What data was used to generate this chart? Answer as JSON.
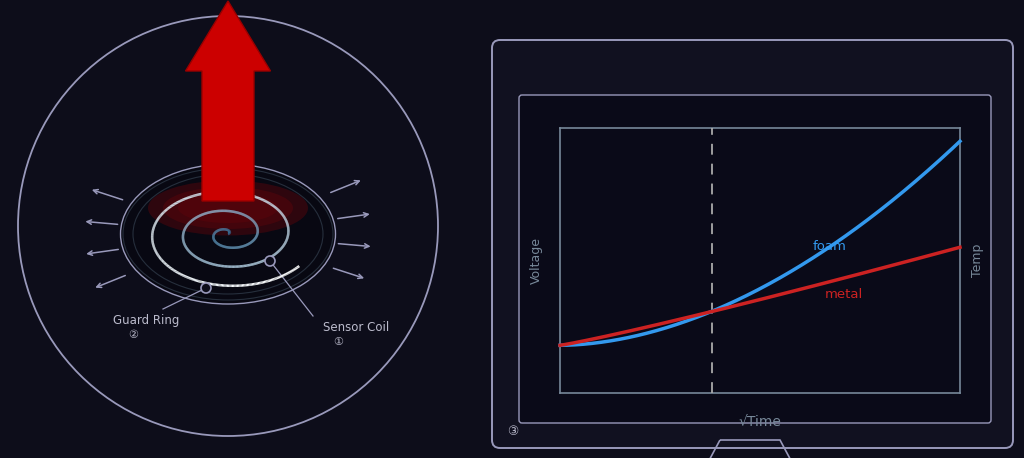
{
  "bg_color": "#0d0d1a",
  "outline_color": "#9999bb",
  "label_color": "#bbbbcc",
  "arrow_color": "#cc0000",
  "foam_color": "#3399ee",
  "metal_color": "#cc2222",
  "graph_axis_color": "#778899",
  "dashed_color": "#aaaaaa",
  "monitor_outline": "#9999bb",
  "ylabel_left": "Voltage",
  "ylabel_right": "Temp",
  "xlabel": "√Time",
  "label_foam": "foam",
  "label_metal": "metal",
  "label_sensor": "Sensor Coil",
  "label_guard": "Guard Ring",
  "num_sensor": "①",
  "num_guard": "②",
  "num_monitor": "③",
  "fig_w": 10.24,
  "fig_h": 4.58,
  "dpi": 100
}
